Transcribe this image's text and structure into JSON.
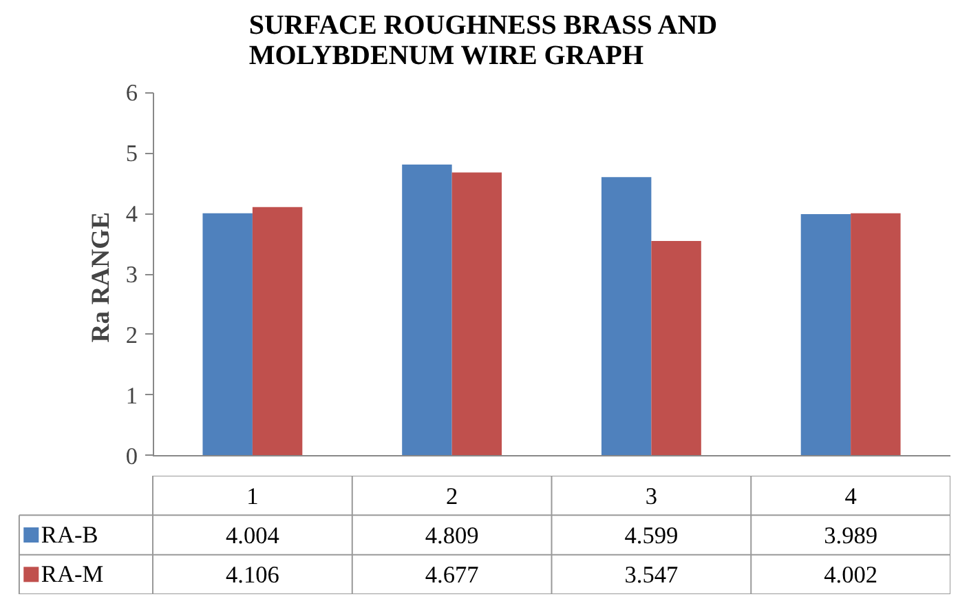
{
  "chart_data": {
    "type": "bar",
    "title": "SURFACE ROUGHNESS BRASS AND MOLYBDENUM WIRE GRAPH",
    "ylabel": "Ra  RANGE",
    "categories": [
      "1",
      "2",
      "3",
      "4"
    ],
    "series": [
      {
        "name": "RA-B",
        "color": "#4f81bd",
        "values": [
          4.004,
          4.809,
          4.599,
          3.989
        ]
      },
      {
        "name": "RA-M",
        "color": "#c0504d",
        "values": [
          4.106,
          4.677,
          3.547,
          4.002
        ]
      }
    ],
    "ylim": [
      0,
      6
    ],
    "yticks": [
      0,
      1,
      2,
      3,
      4,
      5,
      6
    ],
    "grid": false,
    "legend": "bottom",
    "data_labels": true,
    "tick_labels": "y"
  }
}
